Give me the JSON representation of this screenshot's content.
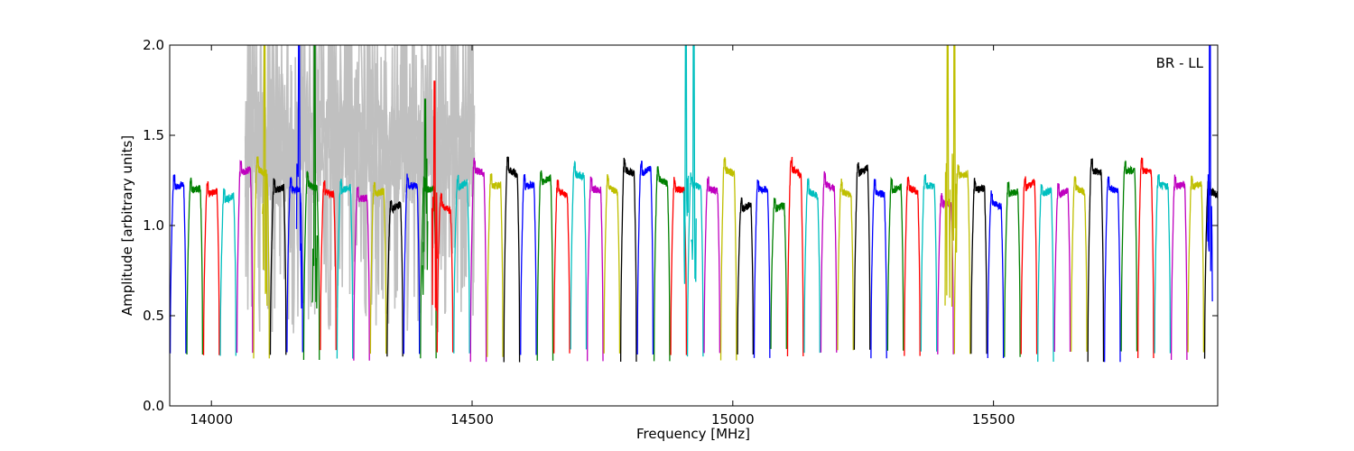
{
  "chart_data": {
    "type": "line",
    "title": "",
    "xlabel": "Frequency [MHz]",
    "ylabel": "Amplitude [arbitrary units]",
    "xlim": [
      13920,
      15930
    ],
    "ylim": [
      0.0,
      2.0
    ],
    "xticks": [
      14000,
      14500,
      15000,
      15500
    ],
    "yticks": [
      0.0,
      0.5,
      1.0,
      1.5,
      2.0
    ],
    "annotation": "BR - LL",
    "annotation_placement": "top-right",
    "grid": false,
    "legend": "none",
    "channel_width_mhz": 32,
    "first_channel_start_mhz": 13920,
    "series_colors": [
      "#0000ff",
      "#008000",
      "#ff0000",
      "#00bfbf",
      "#bf00bf",
      "#bfbf00",
      "#000000"
    ],
    "background_raw_color": "#c0c0c0",
    "background_raw_range": [
      14065,
      14505
    ],
    "channel_plateau_levels": [
      1.22,
      1.2,
      1.18,
      1.15,
      1.3,
      1.3,
      1.2,
      1.2,
      1.22,
      1.18,
      1.2,
      1.15,
      1.18,
      1.1,
      1.22,
      1.2,
      1.1,
      1.22,
      1.3,
      1.22,
      1.3,
      1.22,
      1.25,
      1.18,
      1.28,
      1.2,
      1.2,
      1.3,
      1.3,
      1.25,
      1.2,
      1.22,
      1.2,
      1.3,
      1.1,
      1.2,
      1.1,
      1.3,
      1.18,
      1.22,
      1.18,
      1.3,
      1.18,
      1.2,
      1.2,
      1.22,
      1.12,
      1.28,
      1.2,
      1.12,
      1.18,
      1.22,
      1.18,
      1.18,
      1.2,
      1.3,
      1.2,
      1.3,
      1.3,
      1.22,
      1.22,
      1.22,
      1.18
    ],
    "rfi_spikes": [
      {
        "x": 14102,
        "peak": 2.0,
        "color": "#bfbf00"
      },
      {
        "x": 14168,
        "peak": 2.0,
        "color": "#0000ff"
      },
      {
        "x": 14198,
        "peak": 2.0,
        "color": "#008000"
      },
      {
        "x": 14410,
        "peak": 1.6,
        "color": "#008000"
      },
      {
        "x": 14428,
        "peak": 1.7,
        "color": "#ff0000"
      },
      {
        "x": 14910,
        "peak": 2.0,
        "color": "#00bfbf"
      },
      {
        "x": 14925,
        "peak": 2.0,
        "color": "#00bfbf"
      },
      {
        "x": 15412,
        "peak": 2.0,
        "color": "#bfbf00"
      },
      {
        "x": 15425,
        "peak": 2.0,
        "color": "#bfbf00"
      },
      {
        "x": 15915,
        "peak": 2.0,
        "color": "#0000ff"
      }
    ]
  }
}
